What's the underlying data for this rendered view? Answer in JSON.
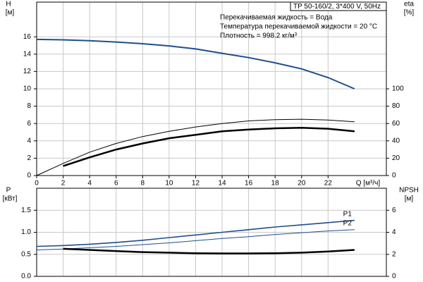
{
  "chart_data": [
    {
      "type": "line",
      "title": "TP 50-160/2, 3*400 V, 50Hz",
      "annotations": [
        "Перекачиваемая жидкость = Вода",
        "Температура перекачиваемой жидкости = 20 °C",
        "Плотность = 998.2 кг/м³"
      ],
      "y_label": "H",
      "y_unit": "[м]",
      "y2_label": "eta",
      "y2_unit": "[%]",
      "x_label": "Q [м³/ч]",
      "x": [
        0,
        2,
        4,
        6,
        8,
        10,
        12,
        14,
        16,
        18,
        20,
        22,
        24
      ],
      "xlim": [
        0,
        26.4
      ],
      "xticks": [
        0,
        2,
        4,
        6,
        8,
        10,
        12,
        14,
        16,
        18,
        20,
        22
      ],
      "ylim": [
        0,
        20
      ],
      "yticks": [
        0,
        2,
        4,
        6,
        8,
        10,
        12,
        14,
        16
      ],
      "y2lim": [
        0,
        200
      ],
      "y2ticks": [
        0,
        20,
        40,
        60,
        80,
        100
      ],
      "grid": true,
      "series": [
        {
          "color": "#1f4e8c",
          "width": 2,
          "values": [
            15.7,
            15.65,
            15.55,
            15.4,
            15.2,
            14.95,
            14.6,
            14.1,
            13.6,
            13.0,
            12.3,
            11.3,
            10.0
          ]
        },
        {
          "color": "#000000",
          "width": 1,
          "axis": "y2",
          "values": [
            0,
            14,
            27,
            37,
            45,
            51,
            56,
            60,
            63,
            64.5,
            65,
            64,
            62
          ]
        },
        {
          "color": "#000000",
          "width": 2.5,
          "axis": "y2",
          "values": [
            null,
            11,
            21,
            30,
            37,
            43,
            47,
            51,
            53,
            54.5,
            55,
            54,
            51
          ]
        }
      ]
    },
    {
      "type": "line",
      "y_label": "P",
      "y_unit": "[кВт]",
      "y2_label": "NPSH",
      "y2_unit": "[м]",
      "x": [
        0,
        2,
        4,
        6,
        8,
        10,
        12,
        14,
        16,
        18,
        20,
        22,
        24
      ],
      "xlim": [
        0,
        26.4
      ],
      "ylim": [
        0,
        2
      ],
      "yticks": [
        {
          "value": 0,
          "label": "0.0"
        },
        0.5,
        {
          "value": 1,
          "label": "1.0"
        },
        1.5
      ],
      "y2lim": [
        0,
        8
      ],
      "y2ticks": [
        0,
        2,
        4,
        6
      ],
      "grid": true,
      "series": [
        {
          "name": "P1",
          "color": "#1f4e8c",
          "width": 1.6,
          "values": [
            0.68,
            0.7,
            0.73,
            0.77,
            0.82,
            0.88,
            0.94,
            1.0,
            1.06,
            1.12,
            1.17,
            1.22,
            1.27
          ]
        },
        {
          "name": "P2",
          "color": "#1f4e8c",
          "width": 1,
          "values": [
            0.6,
            0.62,
            0.65,
            0.68,
            0.72,
            0.76,
            0.81,
            0.86,
            0.9,
            0.95,
            0.99,
            1.03,
            1.06
          ]
        },
        {
          "color": "#000000",
          "width": 2.5,
          "axis": "y2",
          "values": [
            null,
            2.5,
            2.4,
            2.3,
            2.2,
            2.15,
            2.1,
            2.08,
            2.08,
            2.1,
            2.15,
            2.25,
            2.4
          ]
        }
      ]
    }
  ]
}
